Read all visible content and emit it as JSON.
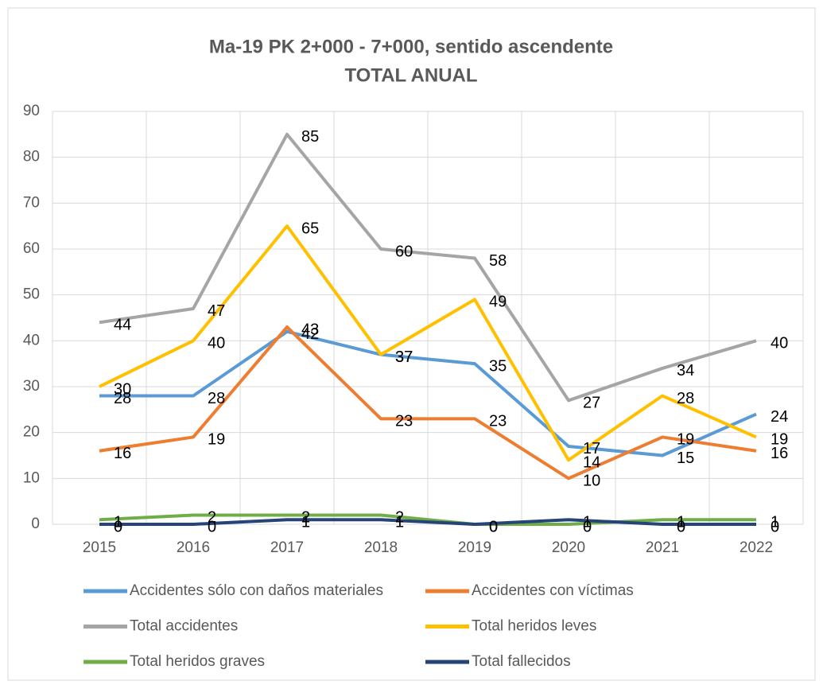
{
  "chart_data": {
    "type": "line",
    "title": [
      "Ma-19 PK 2+000 - 7+000, sentido ascendente",
      "TOTAL ANUAL"
    ],
    "categories": [
      "2015",
      "2016",
      "2017",
      "2018",
      "2019",
      "2020",
      "2021",
      "2022"
    ],
    "series": [
      {
        "name": "Accidentes sólo con daños materiales",
        "color": "#5b9bd5",
        "values": [
          28,
          28,
          42,
          37,
          35,
          17,
          15,
          24
        ]
      },
      {
        "name": "Accidentes con víctimas",
        "color": "#ed7d31",
        "values": [
          16,
          19,
          43,
          23,
          23,
          10,
          19,
          16
        ]
      },
      {
        "name": "Total accidentes",
        "color": "#a5a5a5",
        "values": [
          44,
          47,
          85,
          60,
          58,
          27,
          34,
          40
        ]
      },
      {
        "name": "Total heridos leves",
        "color": "#ffc000",
        "values": [
          30,
          40,
          65,
          37,
          49,
          14,
          28,
          19
        ]
      },
      {
        "name": "Total heridos graves",
        "color": "#70ad47",
        "values": [
          1,
          2,
          2,
          2,
          0,
          0,
          1,
          1
        ]
      },
      {
        "name": "Total fallecidos",
        "color": "#264478",
        "values": [
          0,
          0,
          1,
          1,
          0,
          1,
          0,
          0
        ]
      }
    ],
    "ylim": [
      0,
      90
    ],
    "yticks": [
      0,
      10,
      20,
      30,
      40,
      50,
      60,
      70,
      80,
      90
    ],
    "grid": true,
    "legend": "bottom"
  }
}
